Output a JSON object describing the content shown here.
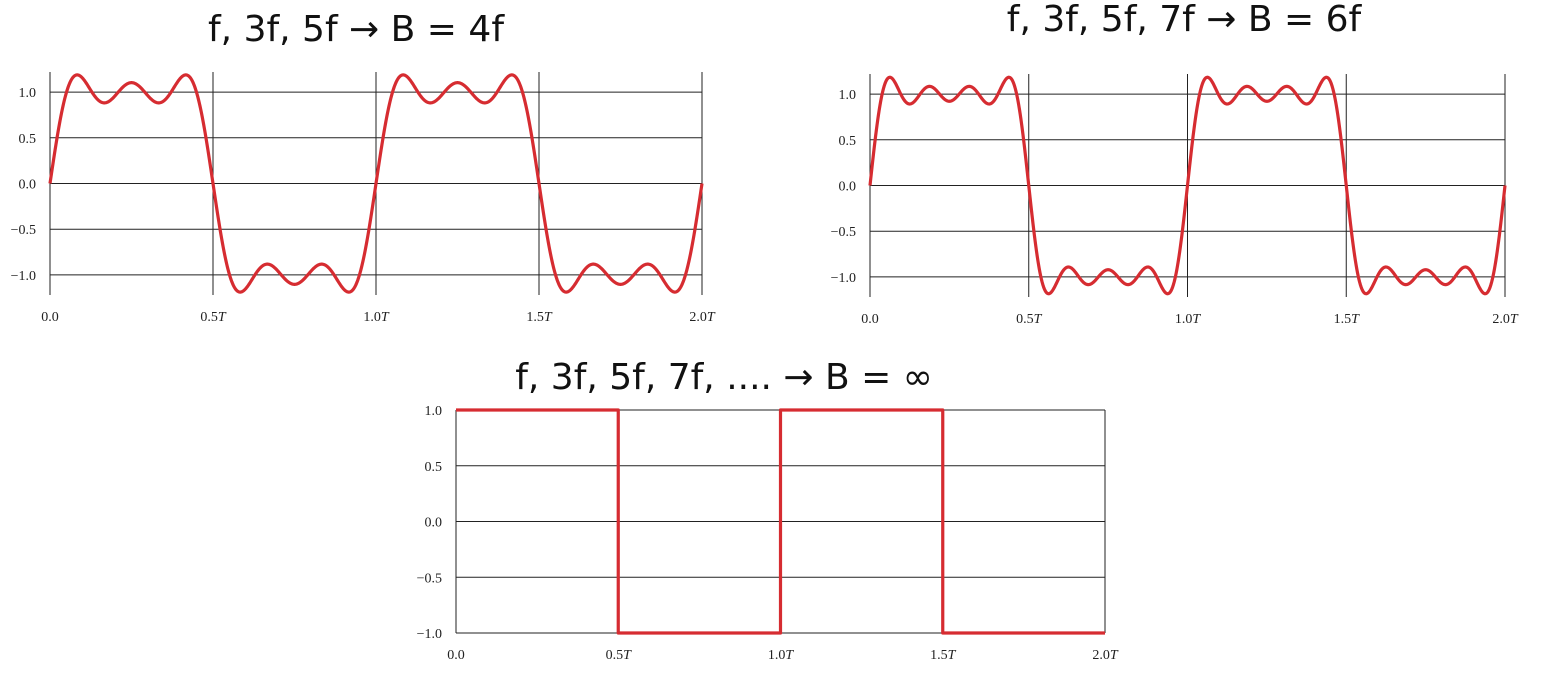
{
  "chart_data": [
    {
      "type": "line",
      "title": "f, 3f, 5f → B = 4f",
      "harmonics": [
        1,
        3,
        5
      ],
      "x": [
        0,
        0.125,
        0.25,
        0.375,
        0.5,
        0.625,
        0.75,
        0.875,
        1.0,
        1.125,
        1.25,
        1.375,
        1.5,
        1.625,
        1.75,
        1.875,
        2.0
      ],
      "series": [
        {
          "values": [
            0,
            1.18,
            0.85,
            1.18,
            0,
            -1.18,
            -0.85,
            -1.18,
            0,
            1.18,
            0.85,
            1.18,
            0,
            -1.18,
            -0.85,
            -1.18,
            0
          ]
        }
      ],
      "xticks": [
        "0.0",
        "0.5T",
        "1.0T",
        "1.5T",
        "2.0T"
      ],
      "yticks": [
        "1.0",
        "0.5",
        "0.0",
        "−0.5",
        "−1.0"
      ],
      "xlim": [
        0,
        2
      ],
      "ylim": [
        -1.22,
        1.22
      ],
      "grid": true,
      "color": "#d62c31"
    },
    {
      "type": "line",
      "title": "f, 3f, 5f, 7f → B = 6f",
      "harmonics": [
        1,
        3,
        5,
        7
      ],
      "x": [
        0,
        0.125,
        0.25,
        0.375,
        0.5,
        0.625,
        0.75,
        0.875,
        1.0,
        1.125,
        1.25,
        1.375,
        1.5,
        1.625,
        1.75,
        1.875,
        2.0
      ],
      "series": [
        {
          "values": [
            0,
            0.9,
            1.05,
            0.9,
            0,
            -0.9,
            -1.05,
            -0.9,
            0,
            0.9,
            1.05,
            0.9,
            0,
            -0.9,
            -1.05,
            -0.9,
            0
          ]
        }
      ],
      "xticks": [
        "0.0",
        "0.5T",
        "1.0T",
        "1.5T",
        "2.0T"
      ],
      "yticks": [
        "1.0",
        "0.5",
        "0.0",
        "−0.5",
        "−1.0"
      ],
      "xlim": [
        0,
        2
      ],
      "ylim": [
        -1.22,
        1.22
      ],
      "grid": true,
      "color": "#d62c31"
    },
    {
      "type": "line",
      "title": "f, 3f, 5f, 7f, .... → B = ∞",
      "harmonics": "infinite",
      "x": [
        0,
        0.5,
        0.5,
        1.0,
        1.0,
        1.5,
        1.5,
        2.0
      ],
      "series": [
        {
          "values": [
            1,
            1,
            -1,
            -1,
            1,
            1,
            -1,
            -1
          ]
        }
      ],
      "xticks": [
        "0.0",
        "0.5T",
        "1.0T",
        "1.5T",
        "2.0T"
      ],
      "yticks": [
        "1.0",
        "0.5",
        "0.0",
        "−0.5",
        "−1.0"
      ],
      "xlim": [
        0,
        2
      ],
      "ylim": [
        -1.0,
        1.0
      ],
      "grid": true,
      "color": "#d62c31"
    }
  ]
}
